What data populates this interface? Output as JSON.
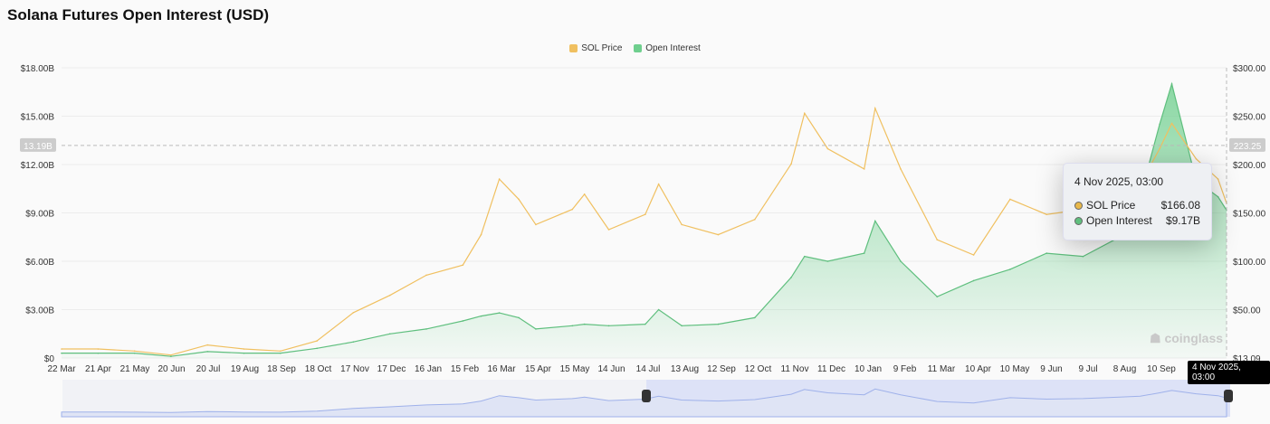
{
  "title": "Solana Futures Open Interest (USD)",
  "legend": [
    {
      "name": "SOL Price",
      "color": "#f0c060"
    },
    {
      "name": "Open Interest",
      "color": "#6fcf8e"
    }
  ],
  "watermark": "coinglass",
  "crosshair": {
    "left_label": "13.19B",
    "right_label": "223.25",
    "x_label": "4 Nov 2025, 03:00"
  },
  "tooltip": {
    "date": "4 Nov 2025, 03:00",
    "rows": [
      {
        "name": "SOL Price",
        "value": "$166.08",
        "color": "#e8b84a"
      },
      {
        "name": "Open Interest",
        "value": "$9.17B",
        "color": "#5fbf7e"
      }
    ]
  },
  "chart_data": {
    "type": "line",
    "x_ticks": [
      "22 Mar",
      "21 Apr",
      "21 May",
      "20 Jun",
      "20 Jul",
      "19 Aug",
      "18 Sep",
      "18 Oct",
      "17 Nov",
      "17 Dec",
      "16 Jan",
      "15 Feb",
      "16 Mar",
      "15 Apr",
      "15 May",
      "14 Jun",
      "14 Jul",
      "13 Aug",
      "12 Sep",
      "12 Oct",
      "11 Nov",
      "11 Dec",
      "10 Jan",
      "9 Feb",
      "11 Mar",
      "10 Apr",
      "10 May",
      "9 Jun",
      "9 Jul",
      "8 Aug",
      "10 Sep"
    ],
    "left_axis": {
      "ticks": [
        "$0",
        "$3.00B",
        "$6.00B",
        "$9.00B",
        "$12.00B",
        "$15.00B",
        "$18.00B"
      ],
      "range": [
        0,
        18
      ]
    },
    "right_axis": {
      "ticks": [
        "$13.09",
        "$50.00",
        "$100.00",
        "$150.00",
        "$200.00",
        "$250.00",
        "$300.00"
      ],
      "range": [
        13.09,
        300
      ]
    },
    "x": [
      "2023-03-22",
      "2023-04-21",
      "2023-05-21",
      "2023-06-20",
      "2023-07-20",
      "2023-08-19",
      "2023-09-18",
      "2023-10-18",
      "2023-11-17",
      "2023-12-17",
      "2024-01-16",
      "2024-02-15",
      "2024-03-01",
      "2024-03-16",
      "2024-04-01",
      "2024-04-15",
      "2024-05-15",
      "2024-05-25",
      "2024-06-14",
      "2024-07-14",
      "2024-07-25",
      "2024-08-13",
      "2024-09-12",
      "2024-10-12",
      "2024-11-11",
      "2024-11-22",
      "2024-12-11",
      "2025-01-10",
      "2025-01-19",
      "2025-02-09",
      "2025-03-11",
      "2025-04-10",
      "2025-05-10",
      "2025-06-09",
      "2025-07-09",
      "2025-08-08",
      "2025-08-25",
      "2025-09-10",
      "2025-09-20",
      "2025-10-10",
      "2025-10-28",
      "2025-11-04"
    ],
    "series": [
      {
        "name": "SOL Price",
        "axis": "right",
        "values": [
          22,
          22,
          20,
          16,
          26,
          22,
          20,
          30,
          58,
          75,
          95,
          105,
          135,
          190,
          170,
          145,
          160,
          175,
          140,
          155,
          185,
          145,
          135,
          150,
          205,
          255,
          220,
          200,
          260,
          200,
          130,
          115,
          170,
          155,
          160,
          175,
          185,
          220,
          245,
          210,
          190,
          166.08
        ]
      },
      {
        "name": "Open Interest",
        "axis": "left",
        "values": [
          0.3,
          0.3,
          0.3,
          0.1,
          0.4,
          0.3,
          0.3,
          0.6,
          1.0,
          1.5,
          1.8,
          2.3,
          2.6,
          2.8,
          2.5,
          1.8,
          2.0,
          2.1,
          2.0,
          2.1,
          3.0,
          2.0,
          2.1,
          2.5,
          5.0,
          6.3,
          6.0,
          6.5,
          8.5,
          6.0,
          3.8,
          4.8,
          5.5,
          6.5,
          6.3,
          7.5,
          10.0,
          14.5,
          17.0,
          11.0,
          10.0,
          9.17
        ]
      }
    ]
  }
}
